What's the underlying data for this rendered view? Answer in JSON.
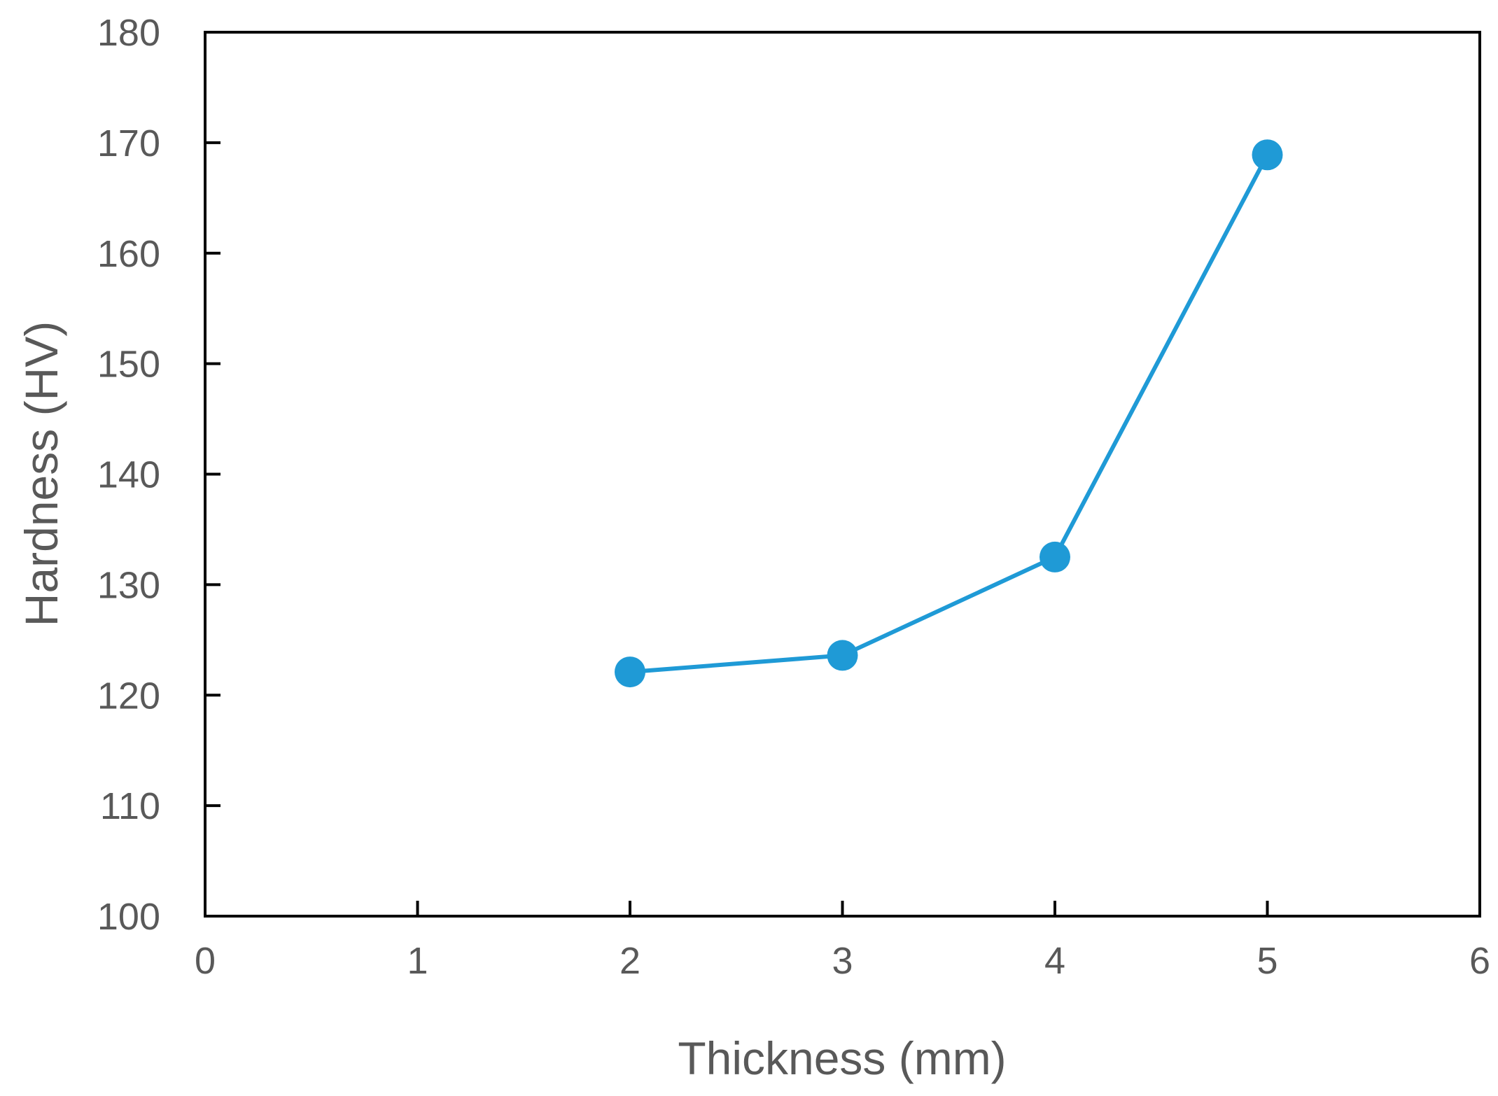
{
  "chart_data": {
    "type": "line",
    "title": "",
    "xlabel": "Thickness (mm)",
    "ylabel": "Hardness (HV)",
    "xlim": [
      0,
      6
    ],
    "ylim": [
      100,
      180
    ],
    "x_ticks": [
      0,
      1,
      2,
      3,
      4,
      5,
      6
    ],
    "y_ticks": [
      100,
      110,
      120,
      130,
      140,
      150,
      160,
      170,
      180
    ],
    "grid": false,
    "legend": "none",
    "series": [
      {
        "color": "#1f9ad6",
        "marker": "circle",
        "x": [
          2,
          3,
          4,
          5
        ],
        "y": [
          122.1,
          123.6,
          132.5,
          168.9
        ]
      }
    ]
  }
}
